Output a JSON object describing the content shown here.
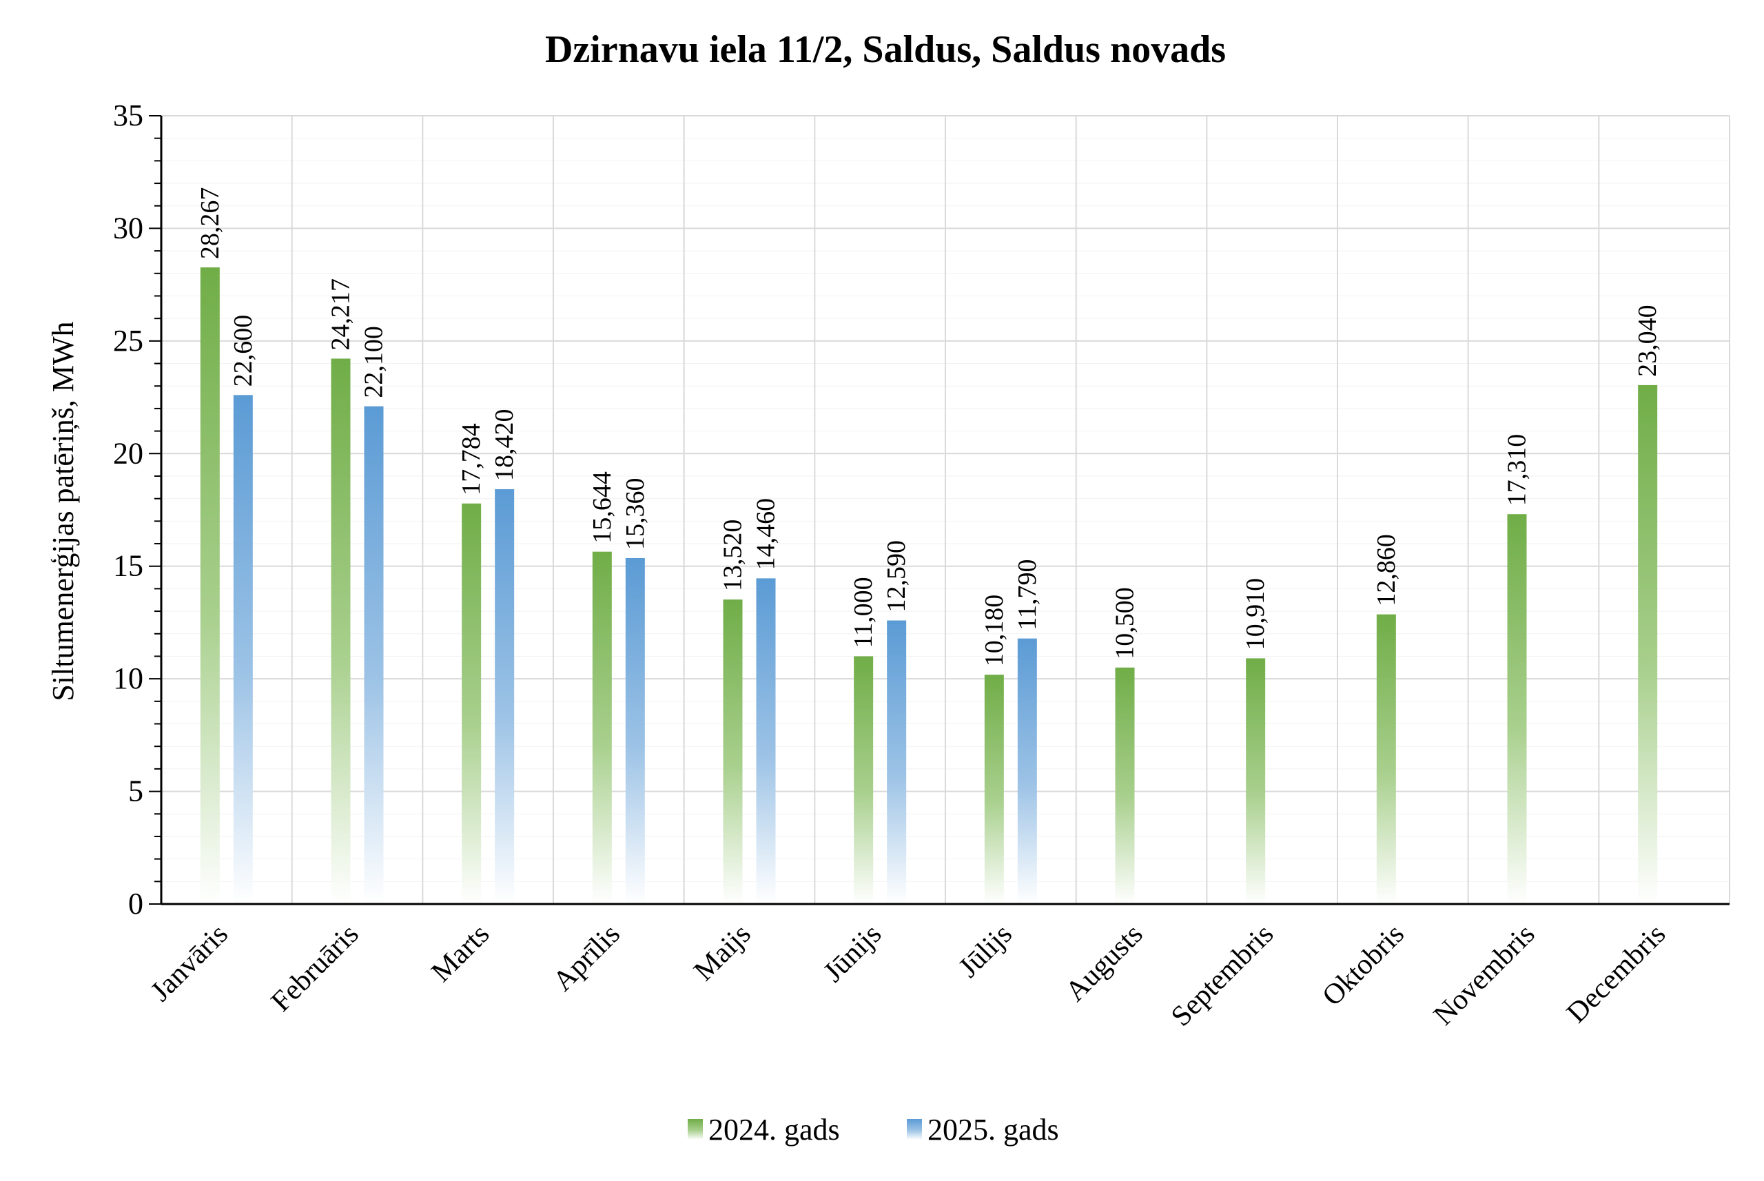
{
  "chart_data": {
    "type": "bar",
    "title": "Dzirnavu iela 11/2, Saldus, Saldus novads",
    "xlabel": "",
    "ylabel": "Siltumenerģijas patēriņš, MWh",
    "ylim": [
      0,
      35
    ],
    "yticks": [
      0,
      5,
      10,
      15,
      20,
      25,
      30,
      35
    ],
    "grid": true,
    "legend_position": "bottom",
    "categories": [
      "Janvāris",
      "Februāris",
      "Marts",
      "Aprīlis",
      "Maijs",
      "Jūnijs",
      "Jūlijs",
      "Augusts",
      "Septembris",
      "Oktobris",
      "Novembris",
      "Decembris"
    ],
    "series": [
      {
        "name": "2024. gads",
        "color": "#70AD47",
        "values": [
          28.267,
          24.217,
          17.784,
          15.644,
          13.52,
          11.0,
          10.18,
          10.5,
          10.91,
          12.86,
          17.31,
          23.04
        ],
        "labels": [
          "28,267",
          "24,217",
          "17,784",
          "15,644",
          "13,520",
          "11,000",
          "10,180",
          "10,500",
          "10,910",
          "12,860",
          "17,310",
          "23,040"
        ]
      },
      {
        "name": "2025. gads",
        "color": "#5B9BD5",
        "values": [
          22.6,
          22.1,
          18.42,
          15.36,
          14.46,
          12.59,
          11.79,
          null,
          null,
          null,
          null,
          null
        ],
        "labels": [
          "22,600",
          "22,100",
          "18,420",
          "15,360",
          "14,460",
          "12,590",
          "11,790",
          "",
          "",
          "",
          "",
          ""
        ]
      }
    ]
  }
}
